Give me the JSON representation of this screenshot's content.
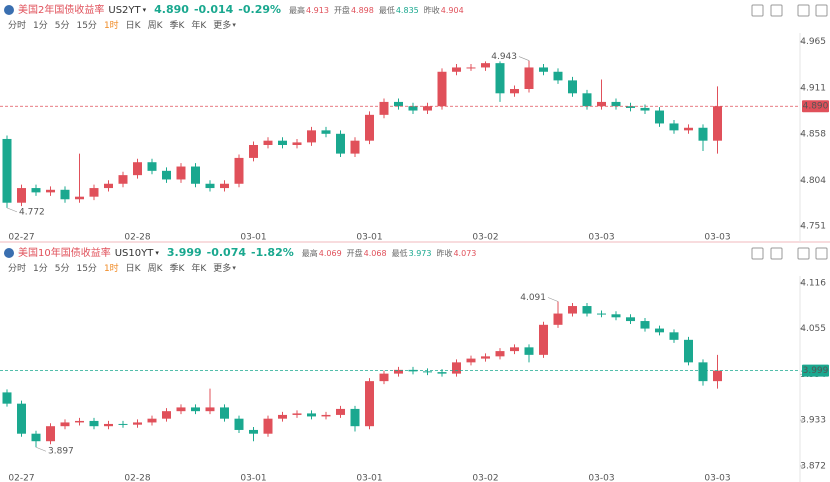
{
  "chart_data": [
    {
      "type": "candlestick",
      "name": "美国2年国债收益率",
      "code": "US2YT",
      "price": "4.890",
      "change": "-0.014",
      "change_pct": "-0.29%",
      "stats": [
        {
          "label": "最高",
          "value": "4.913"
        },
        {
          "label": "开盘",
          "value": "4.898"
        },
        {
          "label": "最低",
          "value": "4.835"
        },
        {
          "label": "昨收",
          "value": "4.904"
        }
      ],
      "intervals": [
        "分时",
        "1分",
        "5分",
        "15分",
        "1时",
        "日K",
        "周K",
        "季K",
        "年K",
        "更多"
      ],
      "active_interval": 4,
      "up_color": "#e0505a",
      "down_color": "#1aa88f",
      "quote_color": "#1aa88f",
      "last_color": "#e0505a",
      "categories": [
        null,
        "02-27",
        null,
        null,
        null,
        null,
        null,
        null,
        null,
        "02-28",
        null,
        null,
        null,
        null,
        null,
        null,
        null,
        "03-01",
        null,
        null,
        null,
        null,
        null,
        null,
        null,
        "03-01",
        null,
        null,
        null,
        null,
        null,
        null,
        null,
        "03-02",
        null,
        null,
        null,
        null,
        null,
        null,
        null,
        "03-03",
        null,
        null,
        null,
        null,
        null,
        null,
        null,
        "03-03"
      ],
      "open": [
        4.852,
        4.778,
        4.795,
        4.79,
        4.793,
        4.782,
        4.785,
        4.795,
        4.8,
        4.81,
        4.825,
        4.815,
        4.805,
        4.82,
        4.8,
        4.795,
        4.8,
        4.83,
        4.845,
        4.85,
        4.845,
        4.848,
        4.862,
        4.858,
        4.835,
        4.85,
        4.88,
        4.895,
        4.89,
        4.885,
        4.89,
        4.93,
        4.935,
        4.935,
        4.94,
        4.905,
        4.91,
        4.935,
        4.93,
        4.92,
        4.905,
        4.89,
        4.895,
        4.89,
        4.888,
        4.885,
        4.87,
        4.862,
        4.865,
        4.85
      ],
      "high": [
        4.856,
        4.799,
        4.799,
        4.797,
        4.797,
        4.835,
        4.799,
        4.804,
        4.814,
        4.829,
        4.829,
        4.819,
        4.824,
        4.824,
        4.804,
        4.804,
        4.834,
        4.849,
        4.854,
        4.854,
        4.852,
        4.866,
        4.866,
        4.862,
        4.854,
        4.884,
        4.899,
        4.899,
        4.894,
        4.894,
        4.934,
        4.939,
        4.939,
        4.942,
        4.942,
        4.914,
        4.943,
        4.939,
        4.934,
        4.924,
        4.909,
        4.921,
        4.899,
        4.894,
        4.892,
        4.889,
        4.874,
        4.869,
        4.869,
        4.913
      ],
      "low": [
        4.772,
        4.774,
        4.786,
        4.786,
        4.778,
        4.778,
        4.781,
        4.791,
        4.796,
        4.806,
        4.811,
        4.801,
        4.801,
        4.796,
        4.791,
        4.791,
        4.796,
        4.826,
        4.841,
        4.841,
        4.841,
        4.844,
        4.854,
        4.831,
        4.831,
        4.846,
        4.876,
        4.886,
        4.881,
        4.881,
        4.886,
        4.926,
        4.931,
        4.931,
        4.895,
        4.901,
        4.906,
        4.926,
        4.916,
        4.901,
        4.886,
        4.886,
        4.886,
        4.884,
        4.881,
        4.866,
        4.858,
        4.858,
        4.838,
        4.835
      ],
      "close": [
        4.778,
        4.795,
        4.79,
        4.793,
        4.782,
        4.785,
        4.795,
        4.8,
        4.81,
        4.825,
        4.815,
        4.805,
        4.82,
        4.8,
        4.795,
        4.8,
        4.83,
        4.845,
        4.85,
        4.845,
        4.848,
        4.862,
        4.858,
        4.835,
        4.85,
        4.88,
        4.895,
        4.89,
        4.885,
        4.89,
        4.93,
        4.935,
        4.935,
        4.94,
        4.905,
        4.91,
        4.935,
        4.93,
        4.92,
        4.905,
        4.89,
        4.895,
        4.89,
        4.888,
        4.885,
        4.87,
        4.862,
        4.865,
        4.85,
        4.89
      ],
      "max_label": 4.943,
      "min_label": 4.772,
      "last": {
        "value": 4.89,
        "label": "4.890"
      },
      "ylim": [
        4.744,
        4.975
      ],
      "yticks": [
        4.965,
        4.911,
        4.858,
        4.804,
        4.751
      ]
    },
    {
      "type": "candlestick",
      "name": "美国10年国债收益率",
      "code": "US10YT",
      "price": "3.999",
      "change": "-0.074",
      "change_pct": "-1.82%",
      "stats": [
        {
          "label": "最高",
          "value": "4.069"
        },
        {
          "label": "开盘",
          "value": "4.068"
        },
        {
          "label": "最低",
          "value": "3.973"
        },
        {
          "label": "昨收",
          "value": "4.073"
        }
      ],
      "intervals": [
        "分时",
        "1分",
        "5分",
        "15分",
        "1时",
        "日K",
        "周K",
        "季K",
        "年K",
        "更多"
      ],
      "active_interval": 4,
      "up_color": "#e0505a",
      "down_color": "#1aa88f",
      "quote_color": "#1aa88f",
      "last_color": "#1aa88f",
      "categories": [
        null,
        "02-27",
        null,
        null,
        null,
        null,
        null,
        null,
        null,
        "02-28",
        null,
        null,
        null,
        null,
        null,
        null,
        null,
        "03-01",
        null,
        null,
        null,
        null,
        null,
        null,
        null,
        "03-01",
        null,
        null,
        null,
        null,
        null,
        null,
        null,
        "03-02",
        null,
        null,
        null,
        null,
        null,
        null,
        null,
        "03-03",
        null,
        null,
        null,
        null,
        null,
        null,
        null,
        "03-03"
      ],
      "open": [
        3.97,
        3.955,
        3.915,
        3.905,
        3.925,
        3.93,
        3.932,
        3.925,
        3.928,
        3.927,
        3.93,
        3.935,
        3.945,
        3.95,
        3.945,
        3.95,
        3.935,
        3.92,
        3.915,
        3.935,
        3.94,
        3.942,
        3.938,
        3.94,
        3.948,
        3.925,
        3.985,
        3.995,
        4.0,
        3.998,
        3.997,
        3.995,
        4.01,
        4.015,
        4.018,
        4.025,
        4.03,
        4.02,
        4.06,
        4.075,
        4.085,
        4.075,
        4.074,
        4.07,
        4.065,
        4.055,
        4.05,
        4.04,
        4.01,
        3.985
      ],
      "high": [
        3.974,
        3.959,
        3.919,
        3.929,
        3.934,
        3.936,
        3.936,
        3.932,
        3.932,
        3.934,
        3.939,
        3.949,
        3.954,
        3.954,
        3.975,
        3.954,
        3.939,
        3.924,
        3.939,
        3.944,
        3.946,
        3.946,
        3.944,
        3.952,
        3.952,
        3.989,
        3.999,
        4.004,
        4.004,
        4.002,
        4.001,
        4.014,
        4.019,
        4.022,
        4.029,
        4.034,
        4.034,
        4.064,
        4.091,
        4.089,
        4.089,
        4.079,
        4.078,
        4.074,
        4.069,
        4.059,
        4.054,
        4.044,
        4.014,
        4.02
      ],
      "low": [
        3.951,
        3.911,
        3.897,
        3.901,
        3.921,
        3.926,
        3.921,
        3.921,
        3.923,
        3.923,
        3.926,
        3.931,
        3.941,
        3.941,
        3.941,
        3.931,
        3.916,
        3.905,
        3.911,
        3.931,
        3.936,
        3.934,
        3.934,
        3.936,
        3.918,
        3.921,
        3.981,
        3.991,
        3.994,
        3.993,
        3.991,
        3.991,
        4.006,
        4.011,
        4.014,
        4.021,
        4.01,
        4.016,
        4.056,
        4.071,
        4.071,
        4.07,
        4.066,
        4.061,
        4.051,
        4.046,
        4.036,
        4.006,
        3.979,
        3.975
      ],
      "close": [
        3.955,
        3.915,
        3.905,
        3.925,
        3.93,
        3.932,
        3.925,
        3.928,
        3.927,
        3.93,
        3.935,
        3.945,
        3.95,
        3.945,
        3.95,
        3.935,
        3.92,
        3.915,
        3.935,
        3.94,
        3.942,
        3.938,
        3.94,
        3.948,
        3.925,
        3.985,
        3.995,
        4.0,
        3.998,
        3.997,
        3.995,
        4.01,
        4.015,
        4.018,
        4.025,
        4.03,
        4.02,
        4.06,
        4.075,
        4.085,
        4.075,
        4.074,
        4.07,
        4.065,
        4.055,
        4.05,
        4.04,
        4.01,
        3.985,
        3.999
      ],
      "max_label": 4.091,
      "min_label": 3.897,
      "last": 3.999,
      "ylim": [
        3.864,
        4.125
      ],
      "yticks": [
        4.116,
        4.055,
        3.994,
        3.933,
        3.872
      ]
    }
  ]
}
